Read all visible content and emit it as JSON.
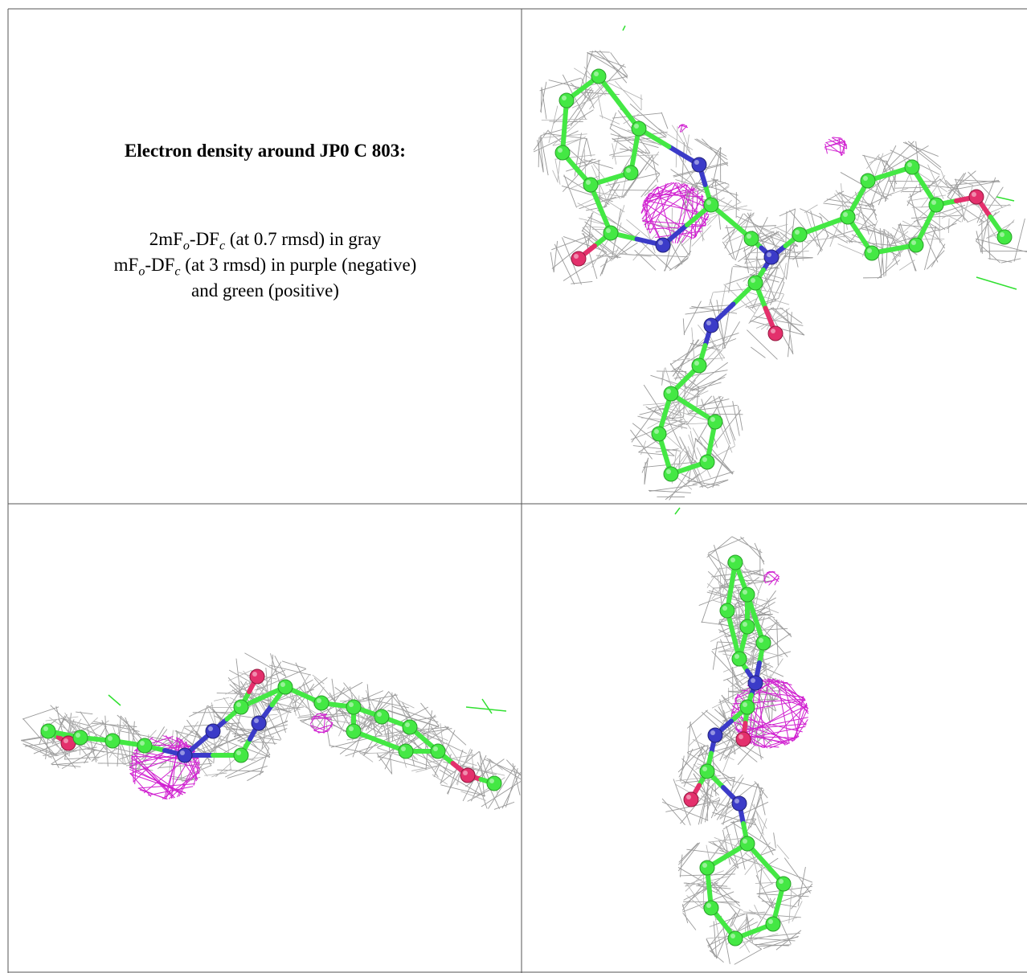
{
  "caption": {
    "title": "Electron density around JP0 C 803:",
    "lines": [
      [
        "2mF",
        "o",
        "-DF",
        "c",
        " (at 0.7 rmsd) in gray"
      ],
      [
        "mF",
        "o",
        "-DF",
        "c",
        " (at 3 rmsd) in purple (negative)"
      ],
      [
        "and green (positive)"
      ]
    ]
  }
}
